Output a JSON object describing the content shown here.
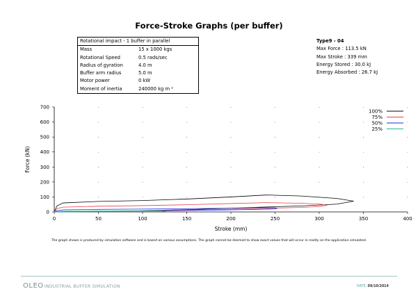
{
  "page": {
    "title": "Force-Stroke Graphs (per buffer)",
    "disclaimer": "The graph shown is produced by simulation software and is based on various assumptions. The graph cannot be deemed to show exact values that will occur in reality on the application simulated.",
    "footer": {
      "logo": "OLEO",
      "tagline": "INDUSTRIAL BUFFER SIMULATION",
      "date_label": "DATE:",
      "date": "09/10/2014"
    }
  },
  "parameters": {
    "heading": "Rotational impact - 1 buffer in parallel",
    "rows": [
      {
        "label": "Mass",
        "value": "15 x 1000 kgs"
      },
      {
        "label": "Rotational Speed",
        "value": "0.5 rads/sec"
      },
      {
        "label": "Radius of gyration",
        "value": "4.0 m"
      },
      {
        "label": "Buffer arm radius",
        "value": "5.0 m"
      },
      {
        "label": "Motor power",
        "value": "0 kW"
      },
      {
        "label": "Moment of inertia",
        "value": "240000 kg m ²"
      }
    ]
  },
  "summary": {
    "type": "Type9 - 04",
    "lines": [
      "Max Force : 113.5 kN",
      "Max Stroke : 339 mm",
      "Energy Stored : 30.0 kJ",
      "Energy Absorbed : 26.7 kJ"
    ]
  },
  "chart_data": {
    "type": "line",
    "xlabel": "Stroke (mm)",
    "ylabel": "Force (kN)",
    "xlim": [
      0,
      400
    ],
    "ylim": [
      0,
      700
    ],
    "xticks": [
      0,
      50,
      100,
      150,
      200,
      250,
      300,
      350,
      400
    ],
    "yticks": [
      0,
      100,
      200,
      300,
      400,
      500,
      600,
      700
    ],
    "legend_position": "top-right",
    "series": [
      {
        "name": "100%",
        "color": "#000000",
        "x": [
          0,
          3,
          10,
          50,
          100,
          150,
          200,
          240,
          280,
          320,
          339,
          320,
          280,
          240,
          200,
          150,
          100,
          50,
          10,
          0
        ],
        "y": [
          0,
          40,
          60,
          70,
          76,
          86,
          100,
          113,
          106,
          90,
          72,
          52,
          40,
          33,
          25,
          15,
          8,
          4,
          1,
          0
        ]
      },
      {
        "name": "75%",
        "color": "#e8404a",
        "x": [
          0,
          3,
          10,
          50,
          100,
          150,
          200,
          240,
          280,
          300,
          309,
          300,
          280,
          240,
          200,
          150,
          100,
          50,
          10,
          0
        ],
        "y": [
          0,
          22,
          32,
          38,
          42,
          48,
          56,
          62,
          58,
          52,
          45,
          36,
          30,
          24,
          18,
          12,
          7,
          3,
          1,
          0
        ]
      },
      {
        "name": "50%",
        "color": "#1f2ae0",
        "x": [
          0,
          3,
          10,
          50,
          100,
          150,
          200,
          230,
          250,
          252,
          250,
          230,
          200,
          150,
          100,
          50,
          10,
          0
        ],
        "y": [
          0,
          8,
          14,
          17,
          19,
          22,
          25,
          28,
          28,
          24,
          20,
          17,
          14,
          10,
          6,
          3,
          1,
          0
        ]
      },
      {
        "name": "25%",
        "color": "#20b89a",
        "x": [
          0,
          3,
          10,
          50,
          100,
          122,
          126,
          122,
          100,
          50,
          10,
          0
        ],
        "y": [
          0,
          3,
          5,
          6,
          7,
          7,
          5,
          3,
          2,
          1,
          0,
          0
        ]
      }
    ]
  }
}
